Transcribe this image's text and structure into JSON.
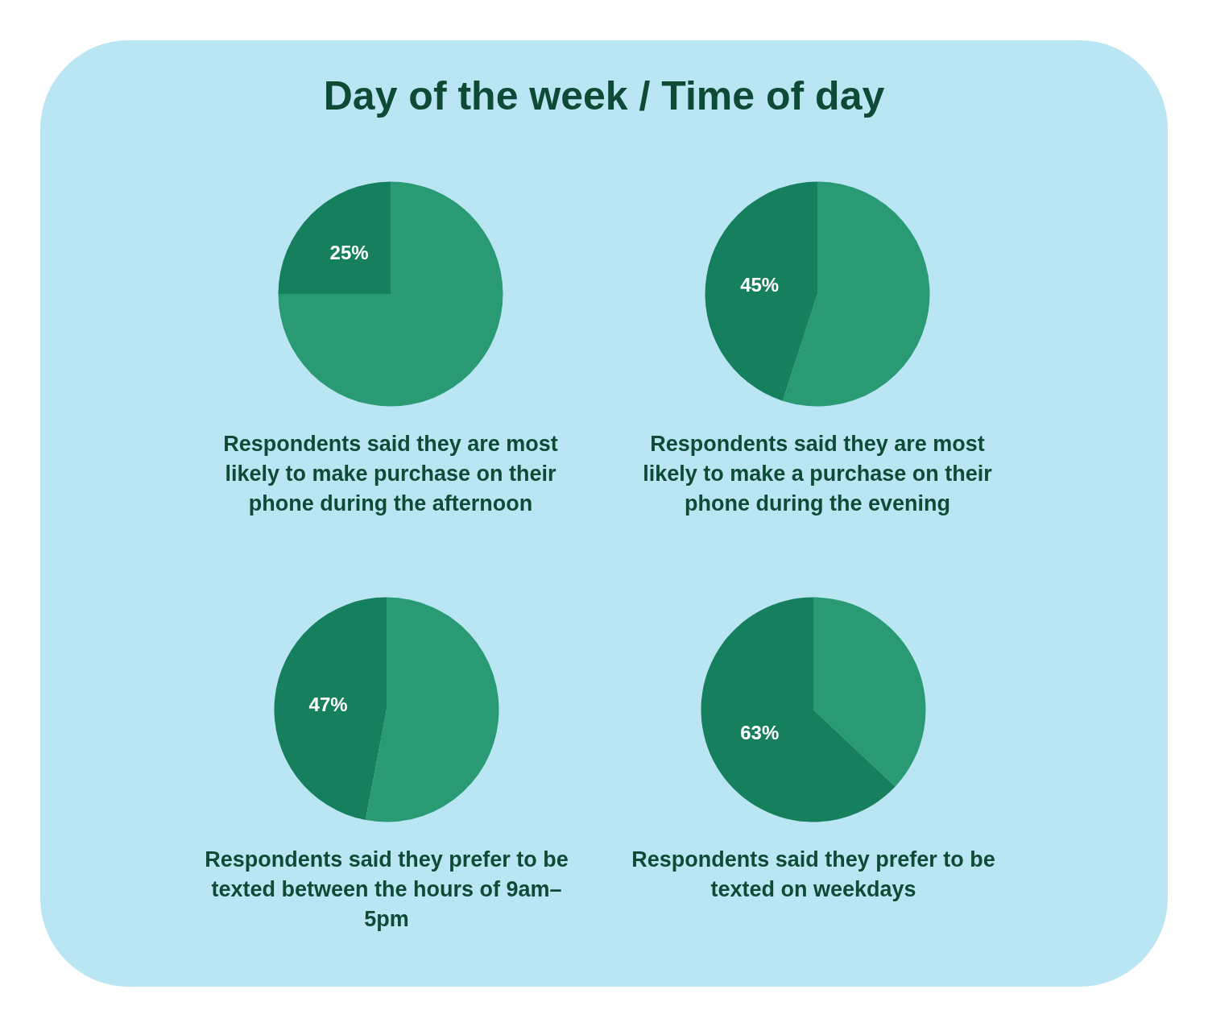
{
  "chart_data": [
    {
      "type": "pie",
      "title": "Day of the week / Time of day",
      "categories": [
        null,
        null
      ],
      "values": [
        75,
        25
      ],
      "colors": [
        "#2a9a75",
        "#167f5d"
      ],
      "value_labels": [
        null,
        "25%"
      ],
      "annotations": [
        "Respondents said they are most likely to make purchase on their phone during the afternoon"
      ]
    },
    {
      "type": "pie",
      "categories": [
        null,
        null
      ],
      "values": [
        55,
        45
      ],
      "colors": [
        "#2a9a75",
        "#167f5d"
      ],
      "value_labels": [
        null,
        "45%"
      ],
      "annotations": [
        "Respondents said they are most likely to make a purchase on their phone during the evening"
      ]
    },
    {
      "type": "pie",
      "categories": [
        null,
        null
      ],
      "values": [
        53,
        47
      ],
      "colors": [
        "#2a9a75",
        "#167f5d"
      ],
      "value_labels": [
        null,
        "47%"
      ],
      "annotations": [
        "Respondents said they prefer to be texted between the hours of 9am–5pm"
      ]
    },
    {
      "type": "pie",
      "categories": [
        null,
        null
      ],
      "values": [
        37,
        63
      ],
      "colors": [
        "#2a9a75",
        "#167f5d"
      ],
      "value_labels": [
        null,
        "63%"
      ],
      "annotations": [
        "Respondents said they prefer to be texted on weekdays"
      ]
    }
  ]
}
